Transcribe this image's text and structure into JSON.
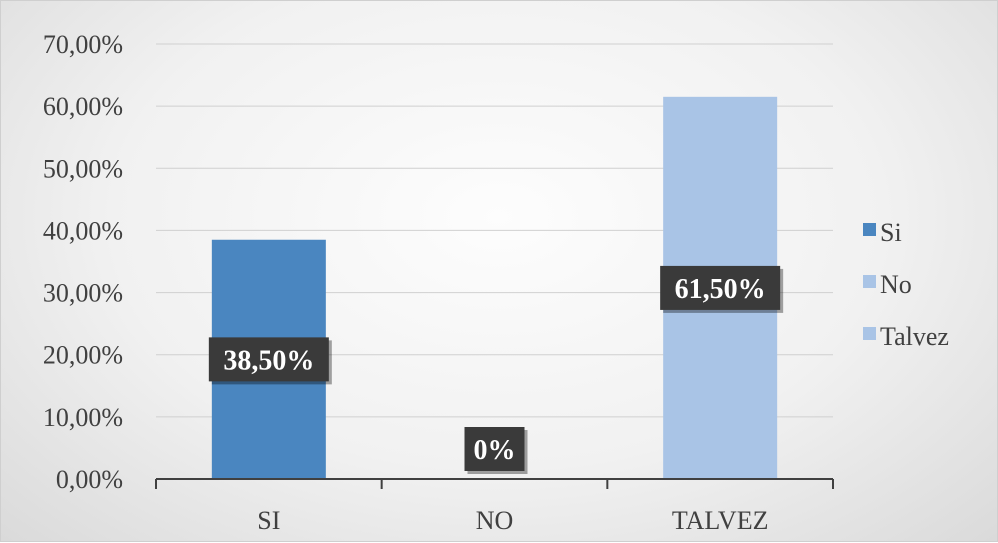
{
  "chart_data": {
    "type": "bar",
    "categories": [
      "SI",
      "NO",
      "TALVEZ"
    ],
    "values": [
      38.5,
      0,
      61.5
    ],
    "data_labels": [
      "38,50%",
      "0%",
      "61,50%"
    ],
    "value_unit": "%",
    "ylim": [
      0,
      70
    ],
    "yticks": [
      0,
      10,
      20,
      30,
      40,
      50,
      60,
      70
    ],
    "ytick_labels": [
      "0,00%",
      "10,00%",
      "20,00%",
      "30,00%",
      "40,00%",
      "50,00%",
      "60,00%",
      "70,00%"
    ],
    "grid": true,
    "legend_position": "right",
    "legend": [
      {
        "name": "Si",
        "color": "#4a86c0"
      },
      {
        "name": "No",
        "color": "#a9c4e6"
      },
      {
        "name": "Talvez",
        "color": "#a9c4e6"
      }
    ],
    "bar_colors": [
      "#4a86c0",
      "#a9c4e6",
      "#a9c4e6"
    ],
    "label_box_color": "#3a3a3a",
    "gridline_color": "#d0d0d0",
    "axis_color": "#404040"
  }
}
